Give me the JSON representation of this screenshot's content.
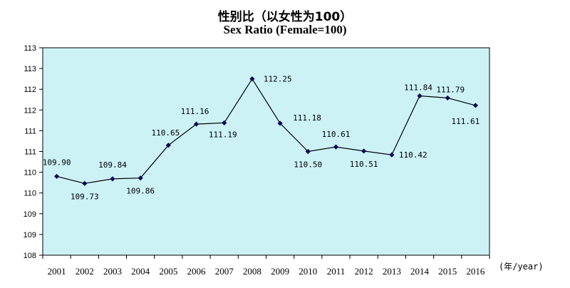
{
  "chart_data": {
    "type": "line",
    "title": "性别比（以女性为100）",
    "subtitle": "Sex Ratio (Female=100)",
    "xlabel": "(年/year)",
    "ylabel": "",
    "categories": [
      "2001",
      "2002",
      "2003",
      "2004",
      "2005",
      "2006",
      "2007",
      "2008",
      "2009",
      "2010",
      "2011",
      "2012",
      "2013",
      "2014",
      "2015",
      "2016"
    ],
    "series": [
      {
        "values": [
          109.9,
          109.73,
          109.84,
          109.86,
          110.65,
          111.16,
          111.19,
          112.25,
          111.18,
          110.5,
          110.61,
          110.51,
          110.42,
          111.84,
          111.79,
          111.61
        ],
        "labels": [
          "109.90",
          "109.73",
          "109.84",
          "109.86",
          "110.65",
          "111.16",
          "111.19",
          "112.25",
          "111.18",
          "110.50",
          "110.61",
          "110.51",
          "110.42",
          "111.84",
          "111.79",
          "111.61"
        ]
      }
    ],
    "ylim": [
      108,
      113
    ],
    "yticks": [
      108,
      108.5,
      109,
      109.5,
      110,
      110.5,
      111,
      111.5,
      112,
      112.5,
      113
    ],
    "ytick_labels": [
      "108",
      "109",
      "109",
      "110",
      "110",
      "111",
      "111",
      "112",
      "112",
      "113",
      "113"
    ],
    "grid": false,
    "legend": "none",
    "plot_background": "#ccf2f6",
    "line_color": "#000000",
    "marker_color": "#0a0a5a"
  }
}
